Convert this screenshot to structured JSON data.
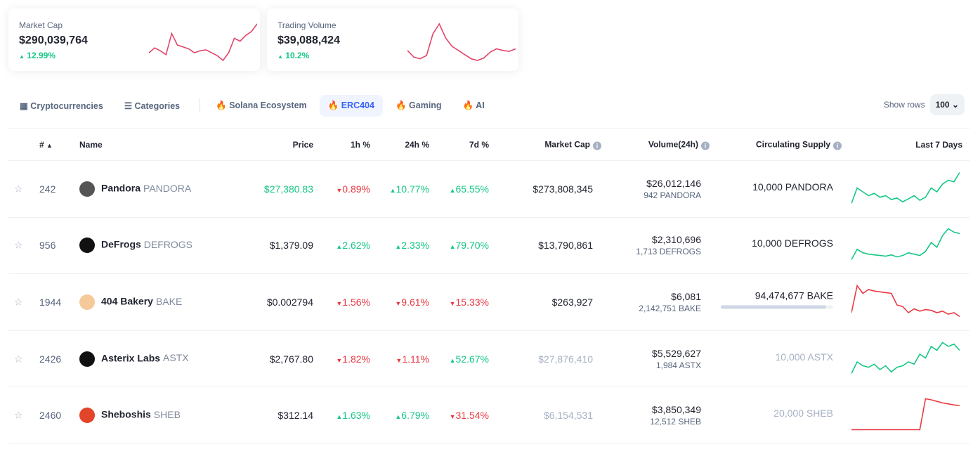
{
  "cards": [
    {
      "label": "Market Cap",
      "value": "$290,039,764",
      "change": "12.99%",
      "direction": "up",
      "spark": [
        40,
        45,
        42,
        38,
        60,
        48,
        46,
        44,
        40,
        42,
        43,
        40,
        37,
        32,
        40,
        55,
        52,
        58,
        62,
        70
      ]
    },
    {
      "label": "Trading Volume",
      "value": "$39,088,424",
      "change": "10.2%",
      "direction": "up",
      "spark": [
        40,
        32,
        30,
        34,
        60,
        72,
        55,
        45,
        40,
        35,
        30,
        28,
        31,
        38,
        42,
        40,
        39,
        42
      ]
    }
  ],
  "tabs": [
    {
      "label": "Cryptocurrencies",
      "icon": "grid-icon"
    },
    {
      "label": "Categories",
      "icon": "list-icon"
    },
    {
      "label": "Solana Ecosystem",
      "icon": "fire-icon"
    },
    {
      "label": "ERC404",
      "icon": "fire-icon",
      "active": true
    },
    {
      "label": "Gaming",
      "icon": "fire-icon"
    },
    {
      "label": "AI",
      "icon": "fire-icon"
    }
  ],
  "show_rows": {
    "label": "Show rows",
    "value": "100"
  },
  "headers": {
    "rank": "#",
    "name": "Name",
    "price": "Price",
    "h1": "1h %",
    "h24": "24h %",
    "d7": "7d %",
    "mcap": "Market Cap",
    "volume": "Volume(24h)",
    "supply": "Circulating Supply",
    "last7": "Last 7 Days"
  },
  "rows": [
    {
      "rank": "242",
      "name": "Pandora",
      "symbol": "PANDORA",
      "price": "$27,380.83",
      "price_color": "#16c784",
      "h1": "0.89%",
      "h1_dir": "dn",
      "h24": "10.77%",
      "h24_dir": "up",
      "d7": "65.55%",
      "d7_dir": "up",
      "mcap": "$273,808,345",
      "mcap_muted": false,
      "volume": "$26,012,146",
      "volume_sub": "942 PANDORA",
      "supply": "10,000 PANDORA",
      "supply_muted": false,
      "logo_color": "#555",
      "spark_color": "#16c784",
      "spark": [
        20,
        40,
        35,
        30,
        33,
        28,
        30,
        25,
        27,
        22,
        26,
        30,
        24,
        28,
        40,
        35,
        45,
        50,
        48,
        60
      ]
    },
    {
      "rank": "956",
      "name": "DeFrogs",
      "symbol": "DEFROGS",
      "price": "$1,379.09",
      "price_color": "#222531",
      "h1": "2.62%",
      "h1_dir": "up",
      "h24": "2.33%",
      "h24_dir": "up",
      "d7": "79.70%",
      "d7_dir": "up",
      "mcap": "$13,790,861",
      "mcap_muted": false,
      "volume": "$2,310,696",
      "volume_sub": "1,713 DEFROGS",
      "supply": "10,000 DEFROGS",
      "supply_muted": false,
      "logo_color": "#111",
      "spark_color": "#16c784",
      "spark": [
        20,
        35,
        30,
        28,
        27,
        26,
        25,
        27,
        24,
        26,
        30,
        28,
        26,
        32,
        45,
        38,
        55,
        65,
        60,
        58
      ]
    },
    {
      "rank": "1944",
      "name": "404 Bakery",
      "symbol": "BAKE",
      "price": "$0.002794",
      "price_color": "#222531",
      "h1": "1.56%",
      "h1_dir": "dn",
      "h24": "9.61%",
      "h24_dir": "dn",
      "d7": "15.33%",
      "d7_dir": "dn",
      "mcap": "$263,927",
      "mcap_muted": false,
      "volume": "$6,081",
      "volume_sub": "2,142,751 BAKE",
      "supply": "94,474,677 BAKE",
      "supply_muted": false,
      "supply_fraction": 0.94,
      "logo_color": "#f5c99a",
      "spark_color": "#ea3943",
      "spark": [
        30,
        65,
        55,
        60,
        58,
        57,
        56,
        55,
        40,
        38,
        30,
        35,
        32,
        34,
        33,
        30,
        32,
        28,
        30,
        25
      ]
    },
    {
      "rank": "2426",
      "name": "Asterix Labs",
      "symbol": "ASTX",
      "price": "$2,767.80",
      "price_color": "#222531",
      "h1": "1.82%",
      "h1_dir": "dn",
      "h24": "1.11%",
      "h24_dir": "dn",
      "d7": "52.67%",
      "d7_dir": "up",
      "mcap": "$27,876,410",
      "mcap_muted": true,
      "volume": "$5,529,627",
      "volume_sub": "1,984 ASTX",
      "supply": "10,000 ASTX",
      "supply_muted": true,
      "logo_color": "#111",
      "spark_color": "#16c784",
      "spark": [
        20,
        35,
        30,
        28,
        32,
        25,
        30,
        22,
        28,
        30,
        35,
        32,
        45,
        40,
        55,
        50,
        60,
        55,
        58,
        50
      ]
    },
    {
      "rank": "2460",
      "name": "Sheboshis",
      "symbol": "SHEB",
      "price": "$312.14",
      "price_color": "#222531",
      "h1": "1.63%",
      "h1_dir": "up",
      "h24": "6.79%",
      "h24_dir": "up",
      "d7": "31.54%",
      "d7_dir": "dn",
      "mcap": "$6,154,531",
      "mcap_muted": true,
      "volume": "$3,850,349",
      "volume_sub": "12,512 SHEB",
      "supply": "20,000 SHEB",
      "supply_muted": true,
      "logo_color": "#e2452a",
      "spark_color": "#ea3943",
      "spark": [
        10,
        10,
        10,
        10,
        10,
        10,
        10,
        10,
        10,
        10,
        10,
        10,
        10,
        70,
        68,
        65,
        62,
        60,
        58,
        57
      ]
    }
  ]
}
